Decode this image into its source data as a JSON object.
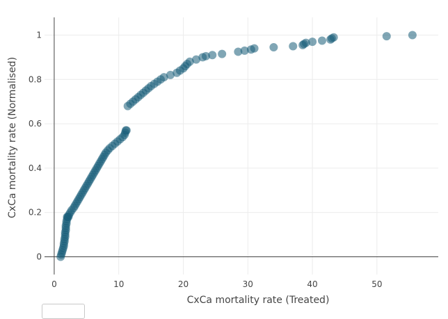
{
  "chart_data": {
    "type": "scatter",
    "xlabel": "CxCa mortality rate (Treated)",
    "ylabel": "CxCa mortality rate (Normalised)",
    "xlim": [
      -1.5,
      59.5
    ],
    "ylim": [
      -0.08,
      1.08
    ],
    "x_ticks": [
      0,
      10,
      20,
      30,
      40,
      50
    ],
    "y_ticks": [
      0,
      0.2,
      0.4,
      0.6,
      0.8,
      1
    ],
    "grid": true,
    "marker_color": "#175c78",
    "marker_opacity": 0.55,
    "series": [
      {
        "x": [
          1.0,
          1.1,
          1.2,
          1.3,
          1.4,
          1.5,
          1.5,
          1.6,
          1.6,
          1.7,
          1.7,
          1.7,
          1.8,
          1.8,
          1.8,
          1.9,
          1.9,
          2.0,
          2.0,
          2.1,
          2.2,
          2.3,
          2.5,
          2.7,
          3.0,
          3.2,
          3.4,
          3.6,
          3.8,
          4.0,
          4.2,
          4.4,
          4.6,
          4.8,
          5.0,
          5.2,
          5.4,
          5.6,
          5.8,
          6.0,
          6.2,
          6.4,
          6.6,
          6.8,
          7.0,
          7.2,
          7.4,
          7.6,
          7.8,
          8.0,
          8.3,
          8.6,
          9.0,
          9.4,
          9.8,
          10.2,
          10.6,
          10.9,
          11.0,
          11.1,
          11.2,
          11.4,
          11.8,
          12.2,
          12.6,
          13.0,
          13.4,
          13.8,
          14.2,
          14.6,
          15.0,
          15.5,
          16.0,
          16.5,
          17.0,
          18.0,
          19.0,
          19.5,
          20.0,
          20.3,
          20.6,
          21.0,
          22.0,
          23.0,
          23.5,
          24.5,
          26.0,
          28.5,
          29.5,
          30.5,
          31.0,
          34.0,
          37.0,
          38.5,
          38.7,
          39.0,
          40.0,
          41.5,
          42.8,
          43.0,
          43.3,
          51.5,
          55.5
        ],
        "y": [
          0.0,
          0.01,
          0.02,
          0.03,
          0.04,
          0.05,
          0.06,
          0.07,
          0.08,
          0.09,
          0.1,
          0.11,
          0.12,
          0.13,
          0.14,
          0.15,
          0.16,
          0.17,
          0.18,
          0.18,
          0.18,
          0.19,
          0.2,
          0.21,
          0.22,
          0.23,
          0.24,
          0.25,
          0.26,
          0.27,
          0.28,
          0.29,
          0.3,
          0.31,
          0.32,
          0.33,
          0.34,
          0.35,
          0.36,
          0.37,
          0.38,
          0.39,
          0.4,
          0.41,
          0.42,
          0.43,
          0.44,
          0.45,
          0.46,
          0.47,
          0.48,
          0.49,
          0.5,
          0.51,
          0.52,
          0.53,
          0.54,
          0.55,
          0.56,
          0.57,
          0.57,
          0.68,
          0.69,
          0.7,
          0.71,
          0.72,
          0.73,
          0.74,
          0.75,
          0.76,
          0.77,
          0.78,
          0.79,
          0.8,
          0.81,
          0.82,
          0.83,
          0.84,
          0.85,
          0.86,
          0.87,
          0.88,
          0.89,
          0.9,
          0.905,
          0.91,
          0.915,
          0.925,
          0.93,
          0.935,
          0.94,
          0.945,
          0.95,
          0.955,
          0.96,
          0.965,
          0.97,
          0.975,
          0.98,
          0.985,
          0.99,
          0.995,
          1.0
        ]
      }
    ]
  }
}
